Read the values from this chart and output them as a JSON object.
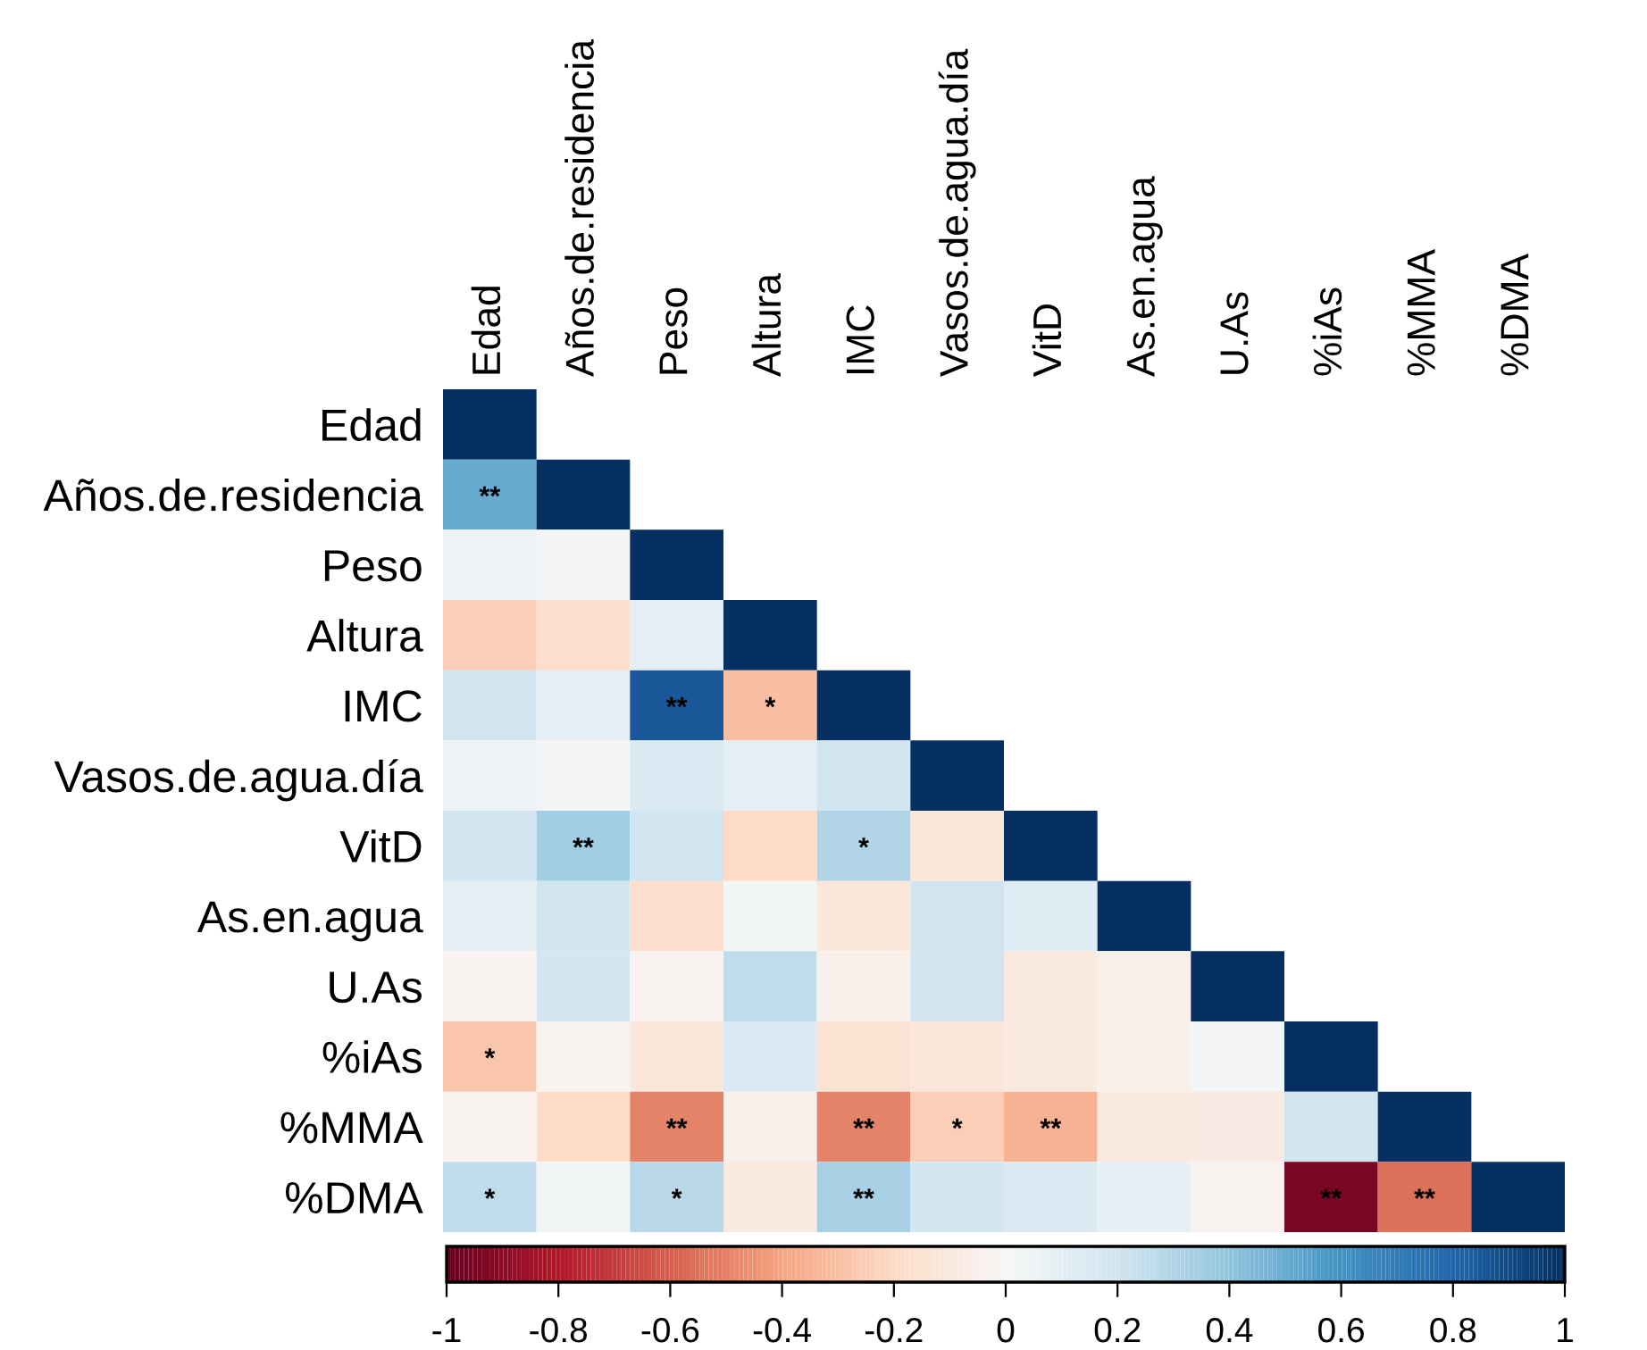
{
  "chart_data": {
    "type": "heatmap",
    "categories": [
      "Edad",
      "Años.de.residencia",
      "Peso",
      "Altura",
      "IMC",
      "Vasos.de.agua.día",
      "VitD",
      "As.en.agua",
      "U.As",
      "%iAs",
      "%MMA",
      "%DMA"
    ],
    "y_categories": [
      "Edad",
      "Años.de.residencia",
      "Peso",
      "Altura",
      "IMC",
      "Vasos.de.agua.día",
      "VitD",
      "As.en.agua",
      "U.As",
      "%iAs",
      "%MMA",
      "%DMA"
    ],
    "cells": [
      [
        1,
        null,
        null,
        null,
        null,
        null,
        null,
        null,
        null,
        null,
        null,
        null
      ],
      [
        0.5,
        1,
        null,
        null,
        null,
        null,
        null,
        null,
        null,
        null,
        null,
        null
      ],
      [
        0.05,
        0.02,
        1,
        null,
        null,
        null,
        null,
        null,
        null,
        null,
        null,
        null
      ],
      [
        -0.25,
        -0.18,
        0.1,
        1,
        null,
        null,
        null,
        null,
        null,
        null,
        null,
        null
      ],
      [
        0.2,
        0.1,
        0.85,
        -0.3,
        1,
        null,
        null,
        null,
        null,
        null,
        null,
        null
      ],
      [
        0.05,
        0.02,
        0.15,
        0.1,
        0.2,
        1,
        null,
        null,
        null,
        null,
        null,
        null
      ],
      [
        0.2,
        0.35,
        0.2,
        -0.2,
        0.3,
        -0.12,
        1,
        null,
        null,
        null,
        null,
        null
      ],
      [
        0.1,
        0.2,
        -0.18,
        0.03,
        -0.12,
        0.2,
        0.12,
        1,
        null,
        null,
        null,
        null
      ],
      [
        -0.03,
        0.18,
        -0.03,
        0.25,
        -0.05,
        0.2,
        -0.1,
        -0.05,
        1,
        null,
        null,
        null
      ],
      [
        -0.28,
        -0.03,
        -0.12,
        0.15,
        -0.15,
        -0.12,
        -0.1,
        -0.05,
        0.02,
        1,
        null,
        null
      ],
      [
        -0.03,
        -0.2,
        -0.5,
        -0.05,
        -0.5,
        -0.25,
        -0.35,
        -0.1,
        -0.08,
        0.2,
        1,
        null
      ],
      [
        0.25,
        0.03,
        0.28,
        -0.1,
        0.33,
        0.18,
        0.15,
        0.08,
        -0.03,
        -0.95,
        -0.55,
        1
      ]
    ],
    "cell_labels": [
      [
        null,
        null,
        null,
        null,
        null,
        null,
        null,
        null,
        null,
        null,
        null,
        null
      ],
      [
        "**",
        null,
        null,
        null,
        null,
        null,
        null,
        null,
        null,
        null,
        null,
        null
      ],
      [
        null,
        null,
        null,
        null,
        null,
        null,
        null,
        null,
        null,
        null,
        null,
        null
      ],
      [
        null,
        null,
        null,
        null,
        null,
        null,
        null,
        null,
        null,
        null,
        null,
        null
      ],
      [
        null,
        null,
        "**",
        "*",
        null,
        null,
        null,
        null,
        null,
        null,
        null,
        null
      ],
      [
        null,
        null,
        null,
        null,
        null,
        null,
        null,
        null,
        null,
        null,
        null,
        null
      ],
      [
        null,
        "**",
        null,
        null,
        "*",
        null,
        null,
        null,
        null,
        null,
        null,
        null
      ],
      [
        null,
        null,
        null,
        null,
        null,
        null,
        null,
        null,
        null,
        null,
        null,
        null
      ],
      [
        null,
        null,
        null,
        null,
        null,
        null,
        null,
        null,
        null,
        null,
        null,
        null
      ],
      [
        "*",
        null,
        null,
        null,
        null,
        null,
        null,
        null,
        null,
        null,
        null,
        null
      ],
      [
        null,
        null,
        "**",
        null,
        "**",
        "*",
        "**",
        null,
        null,
        null,
        null,
        null
      ],
      [
        "*",
        null,
        "*",
        null,
        "**",
        null,
        null,
        null,
        null,
        "**",
        "**",
        null
      ]
    ],
    "clim": [
      -1,
      1
    ],
    "cticks": [
      -1,
      -0.8,
      -0.6,
      -0.4,
      -0.2,
      0,
      0.2,
      0.4,
      0.6,
      0.8,
      1
    ]
  }
}
